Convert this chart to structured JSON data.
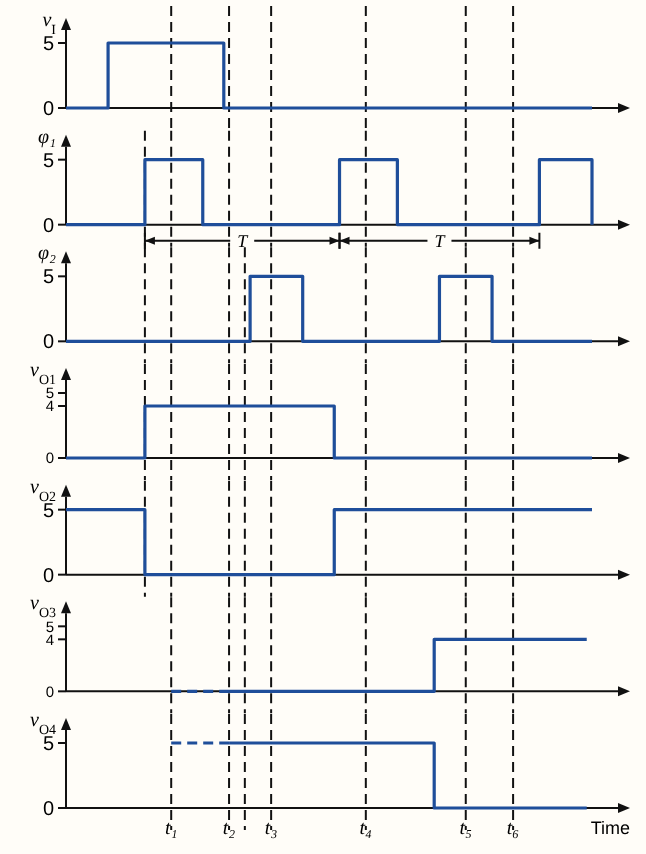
{
  "chart_data": [
    {
      "type": "step",
      "ylabel": "v$_{I}$",
      "ylim": [
        0,
        6
      ],
      "yticks": [
        0,
        5
      ],
      "tick_labels": "y",
      "grid": "x",
      "categories": [
        null,
        null,
        null,
        null,
        null,
        null,
        null,
        null,
        null,
        null,
        null,
        null,
        null,
        null,
        null,
        null,
        null,
        null,
        null,
        null,
        null,
        null,
        null,
        null,
        null,
        null,
        null,
        null,
        null,
        null,
        null,
        null,
        null,
        null,
        null,
        null,
        null,
        null,
        null,
        null,
        null,
        null,
        null,
        null,
        null,
        null,
        null,
        null,
        null,
        null,
        null,
        null,
        null,
        null,
        null,
        null,
        null,
        null,
        null,
        null,
        null,
        null,
        null,
        null,
        null,
        null,
        null,
        null,
        null,
        null,
        null,
        null,
        null,
        null,
        null,
        null,
        null,
        null,
        null,
        null,
        null,
        null,
        null,
        null,
        null,
        null,
        null,
        null,
        null,
        null,
        null,
        null,
        null,
        null,
        null,
        null,
        null,
        null,
        null,
        null,
        null
      ],
      "series": [
        {
          "color": "#1f4e9a",
          "values": [
            0,
            0,
            0,
            0,
            0,
            0,
            0,
            0,
            5,
            5,
            5,
            5,
            5,
            5,
            5,
            5,
            5,
            5,
            5,
            5,
            5,
            5,
            5,
            5,
            5,
            5,
            5,
            5,
            5,
            5,
            0,
            0,
            0,
            0,
            0,
            0,
            0,
            0,
            0,
            0,
            0,
            0,
            0,
            0,
            0,
            0,
            0,
            0,
            0,
            0,
            0,
            0,
            0,
            0,
            0,
            0,
            0,
            0,
            0,
            0,
            0,
            0,
            0,
            0,
            0,
            0,
            0,
            0,
            0,
            0,
            0,
            0,
            0,
            0,
            0,
            0,
            0,
            0,
            0,
            0,
            0,
            0,
            0,
            0,
            0,
            0,
            0,
            0,
            0,
            0,
            0,
            0,
            0,
            0,
            0,
            0,
            0,
            0,
            0,
            0,
            0
          ]
        }
      ]
    },
    {
      "type": "step",
      "ylabel": "φ₁",
      "ylim": [
        0,
        6
      ],
      "yticks": [
        0,
        5
      ],
      "tick_labels": "y",
      "grid": "x",
      "annotations": [
        "T",
        "T"
      ],
      "categories": [
        null,
        null,
        null,
        null,
        null,
        null,
        null,
        null,
        null,
        null,
        null,
        null,
        null,
        null,
        null,
        null,
        null,
        null,
        null,
        null,
        null,
        null,
        null,
        null,
        null,
        null,
        null,
        null,
        null,
        null,
        null,
        null,
        null,
        null,
        null,
        null,
        null,
        null,
        null,
        null,
        null,
        null,
        null,
        null,
        null,
        null,
        null,
        null,
        null,
        null,
        null,
        null,
        null,
        null,
        null,
        null,
        null,
        null,
        null,
        null,
        null,
        null,
        null,
        null,
        null,
        null,
        null,
        null,
        null,
        null,
        null,
        null,
        null,
        null,
        null,
        null,
        null,
        null,
        null,
        null,
        null,
        null,
        null,
        null,
        null,
        null,
        null,
        null,
        null,
        null,
        null,
        null,
        null,
        null,
        null,
        null,
        null,
        null,
        null,
        null,
        null
      ],
      "series": [
        {
          "color": "#1f4e9a",
          "values": [
            0,
            0,
            0,
            0,
            0,
            0,
            0,
            0,
            0,
            0,
            0,
            0,
            0,
            0,
            0,
            5,
            5,
            5,
            5,
            5,
            5,
            5,
            5,
            5,
            5,
            5,
            0,
            0,
            0,
            0,
            0,
            0,
            0,
            0,
            0,
            0,
            0,
            0,
            0,
            0,
            0,
            0,
            0,
            0,
            0,
            0,
            0,
            0,
            0,
            0,
            0,
            0,
            5,
            5,
            5,
            5,
            5,
            5,
            5,
            5,
            5,
            5,
            5,
            0,
            0,
            0,
            0,
            0,
            0,
            0,
            0,
            0,
            0,
            0,
            0,
            0,
            0,
            0,
            0,
            0,
            0,
            0,
            0,
            0,
            0,
            0,
            0,
            0,
            0,
            0,
            5,
            5,
            5,
            5,
            5,
            5,
            5,
            5,
            5,
            5,
            0
          ]
        }
      ]
    },
    {
      "type": "step",
      "ylabel": "φ₂",
      "ylim": [
        0,
        6
      ],
      "yticks": [
        0,
        5
      ],
      "tick_labels": "y",
      "grid": "x",
      "categories": [
        null,
        null,
        null,
        null,
        null,
        null,
        null,
        null,
        null,
        null,
        null,
        null,
        null,
        null,
        null,
        null,
        null,
        null,
        null,
        null,
        null,
        null,
        null,
        null,
        null,
        null,
        null,
        null,
        null,
        null,
        null,
        null,
        null,
        null,
        null,
        null,
        null,
        null,
        null,
        null,
        null,
        null,
        null,
        null,
        null,
        null,
        null,
        null,
        null,
        null,
        null,
        null,
        null,
        null,
        null,
        null,
        null,
        null,
        null,
        null,
        null,
        null,
        null,
        null,
        null,
        null,
        null,
        null,
        null,
        null,
        null,
        null,
        null,
        null,
        null,
        null,
        null,
        null,
        null,
        null,
        null,
        null,
        null,
        null,
        null,
        null,
        null,
        null,
        null,
        null,
        null,
        null,
        null,
        null,
        null,
        null,
        null,
        null,
        null,
        null,
        null
      ],
      "series": [
        {
          "color": "#1f4e9a",
          "values": [
            0,
            0,
            0,
            0,
            0,
            0,
            0,
            0,
            0,
            0,
            0,
            0,
            0,
            0,
            0,
            0,
            0,
            0,
            0,
            0,
            0,
            0,
            0,
            0,
            0,
            0,
            0,
            0,
            0,
            0,
            0,
            0,
            0,
            0,
            0,
            5,
            5,
            5,
            5,
            5,
            5,
            5,
            5,
            5,
            5,
            0,
            0,
            0,
            0,
            0,
            0,
            0,
            0,
            0,
            0,
            0,
            0,
            0,
            0,
            0,
            0,
            0,
            0,
            0,
            0,
            0,
            0,
            0,
            0,
            0,
            0,
            5,
            5,
            5,
            5,
            5,
            5,
            5,
            5,
            5,
            5,
            0,
            0,
            0,
            0,
            0,
            0,
            0,
            0,
            0,
            0,
            0,
            0,
            0,
            0,
            0,
            0,
            0,
            0,
            0,
            0
          ]
        }
      ]
    },
    {
      "type": "step",
      "ylabel": "v$_{O1}$",
      "ylim": [
        0,
        6
      ],
      "yticks": [
        0,
        4,
        5
      ],
      "tick_labels": "y",
      "grid": "x",
      "categories": [
        null,
        null,
        null,
        null,
        null,
        null,
        null,
        null,
        null,
        null,
        null,
        null,
        null,
        null,
        null,
        null,
        null,
        null,
        null,
        null,
        null,
        null,
        null,
        null,
        null,
        null,
        null,
        null,
        null,
        null,
        null,
        null,
        null,
        null,
        null,
        null,
        null,
        null,
        null,
        null,
        null,
        null,
        null,
        null,
        null,
        null,
        null,
        null,
        null,
        null,
        null,
        null,
        null,
        null,
        null,
        null,
        null,
        null,
        null,
        null,
        null,
        null,
        null,
        null,
        null,
        null,
        null,
        null,
        null,
        null,
        null,
        null,
        null,
        null,
        null,
        null,
        null,
        null,
        null,
        null,
        null,
        null,
        null,
        null,
        null,
        null,
        null,
        null,
        null,
        null,
        null,
        null,
        null,
        null,
        null,
        null,
        null,
        null,
        null,
        null,
        null
      ],
      "series": [
        {
          "color": "#1f4e9a",
          "values": [
            0,
            0,
            0,
            0,
            0,
            0,
            0,
            0,
            0,
            0,
            0,
            0,
            0,
            0,
            0,
            4,
            4,
            4,
            4,
            4,
            4,
            4,
            4,
            4,
            4,
            4,
            4,
            4,
            4,
            4,
            4,
            4,
            4,
            4,
            4,
            4,
            4,
            4,
            4,
            4,
            4,
            4,
            4,
            4,
            4,
            4,
            4,
            4,
            4,
            4,
            4,
            0,
            0,
            0,
            0,
            0,
            0,
            0,
            0,
            0,
            0,
            0,
            0,
            0,
            0,
            0,
            0,
            0,
            0,
            0,
            0,
            0,
            0,
            0,
            0,
            0,
            0,
            0,
            0,
            0,
            0,
            0,
            0,
            0,
            0,
            0,
            0,
            0,
            0,
            0,
            0,
            0,
            0,
            0,
            0,
            0,
            0,
            0,
            0,
            0,
            0
          ]
        }
      ]
    },
    {
      "type": "step",
      "ylabel": "v$_{O2}$",
      "ylim": [
        0,
        6
      ],
      "yticks": [
        0,
        5
      ],
      "tick_labels": "y",
      "grid": "x",
      "categories": [
        null,
        null,
        null,
        null,
        null,
        null,
        null,
        null,
        null,
        null,
        null,
        null,
        null,
        null,
        null,
        null,
        null,
        null,
        null,
        null,
        null,
        null,
        null,
        null,
        null,
        null,
        null,
        null,
        null,
        null,
        null,
        null,
        null,
        null,
        null,
        null,
        null,
        null,
        null,
        null,
        null,
        null,
        null,
        null,
        null,
        null,
        null,
        null,
        null,
        null,
        null,
        null,
        null,
        null,
        null,
        null,
        null,
        null,
        null,
        null,
        null,
        null,
        null,
        null,
        null,
        null,
        null,
        null,
        null,
        null,
        null,
        null,
        null,
        null,
        null,
        null,
        null,
        null,
        null,
        null,
        null,
        null,
        null,
        null,
        null,
        null,
        null,
        null,
        null,
        null,
        null,
        null,
        null,
        null,
        null,
        null,
        null,
        null,
        null,
        null,
        null
      ],
      "series": [
        {
          "color": "#1f4e9a",
          "values": [
            5,
            5,
            5,
            5,
            5,
            5,
            5,
            5,
            5,
            5,
            5,
            5,
            5,
            5,
            5,
            0,
            0,
            0,
            0,
            0,
            0,
            0,
            0,
            0,
            0,
            0,
            0,
            0,
            0,
            0,
            0,
            0,
            0,
            0,
            0,
            0,
            0,
            0,
            0,
            0,
            0,
            0,
            0,
            0,
            0,
            0,
            0,
            0,
            0,
            0,
            0,
            5,
            5,
            5,
            5,
            5,
            5,
            5,
            5,
            5,
            5,
            5,
            5,
            5,
            5,
            5,
            5,
            5,
            5,
            5,
            5,
            5,
            5,
            5,
            5,
            5,
            5,
            5,
            5,
            5,
            5,
            5,
            5,
            5,
            5,
            5,
            5,
            5,
            5,
            5,
            5,
            5,
            5,
            5,
            5,
            5,
            5,
            5,
            5,
            5,
            5
          ]
        }
      ]
    },
    {
      "type": "step",
      "ylabel": "v$_{O3}$",
      "ylim": [
        0,
        6
      ],
      "yticks": [
        0,
        4,
        5
      ],
      "tick_labels": "y",
      "grid": "x",
      "categories": [
        null,
        null,
        null,
        null,
        null,
        null,
        null,
        null,
        null,
        null,
        null,
        null,
        null,
        null,
        null,
        null,
        null,
        null,
        null,
        null,
        null,
        null,
        null,
        null,
        null,
        null,
        null,
        null,
        null,
        null,
        null,
        null,
        null,
        null,
        null,
        null,
        null,
        null,
        null,
        null,
        null,
        null,
        null,
        null,
        null,
        null,
        null,
        null,
        null,
        null,
        null,
        null,
        null,
        null,
        null,
        null,
        null,
        null,
        null,
        null,
        null,
        null,
        null,
        null,
        null,
        null,
        null,
        null,
        null,
        null,
        null,
        null,
        null,
        null,
        null,
        null,
        null,
        null,
        null,
        null,
        null,
        null,
        null,
        null,
        null,
        null,
        null,
        null,
        null,
        null,
        null,
        null,
        null,
        null,
        null,
        null,
        null,
        null,
        null,
        null,
        null
      ],
      "series": [
        {
          "color": "#1f4e9a",
          "line_style": "dashed",
          "values": [
            null,
            null,
            null,
            null,
            null,
            null,
            null,
            null,
            null,
            null,
            null,
            null,
            null,
            null,
            null,
            null,
            null,
            null,
            null,
            null,
            0,
            0,
            0,
            0,
            0,
            0,
            0,
            0,
            0,
            0,
            0,
            0,
            null,
            null,
            null,
            null,
            null,
            null,
            null,
            null,
            null,
            null,
            null,
            null,
            null,
            null,
            null,
            null,
            null,
            null,
            null,
            null,
            null,
            null,
            null,
            null,
            null,
            null,
            null,
            null,
            null,
            null,
            null,
            null,
            null,
            null,
            null,
            null,
            null,
            null,
            null,
            null,
            null,
            null,
            null,
            null,
            null,
            null,
            null,
            null,
            null,
            null,
            null,
            null,
            null,
            null,
            null,
            null,
            null,
            null,
            null,
            null,
            null,
            null,
            null,
            null,
            null,
            null,
            null,
            null,
            null
          ]
        },
        {
          "color": "#1f4e9a",
          "line_style": "solid",
          "values": [
            null,
            null,
            null,
            null,
            null,
            null,
            null,
            null,
            null,
            null,
            null,
            null,
            null,
            null,
            null,
            null,
            null,
            null,
            null,
            null,
            null,
            null,
            null,
            null,
            null,
            null,
            null,
            null,
            null,
            null,
            null,
            0,
            0,
            0,
            0,
            0,
            0,
            0,
            0,
            0,
            0,
            0,
            0,
            0,
            0,
            0,
            0,
            0,
            0,
            0,
            0,
            0,
            0,
            0,
            0,
            0,
            0,
            0,
            0,
            0,
            0,
            0,
            0,
            0,
            0,
            0,
            0,
            0,
            0,
            0,
            4,
            4,
            4,
            4,
            4,
            4,
            4,
            4,
            4,
            4,
            4,
            4,
            4,
            4,
            4,
            4,
            4,
            4,
            4,
            4,
            4,
            4,
            4,
            4,
            4,
            4,
            4,
            4,
            4,
            4,
            null
          ]
        }
      ]
    },
    {
      "type": "step",
      "ylabel": "v$_{O4}$",
      "xlabel": "Time",
      "ylim": [
        0,
        6
      ],
      "yticks": [
        0,
        5
      ],
      "grid": "x",
      "categories": [
        null,
        null,
        null,
        null,
        null,
        null,
        null,
        null,
        null,
        null,
        null,
        null,
        null,
        null,
        null,
        null,
        null,
        null,
        null,
        null,
        "t₁",
        null,
        null,
        null,
        null,
        null,
        null,
        null,
        null,
        null,
        null,
        "t₂",
        null,
        null,
        null,
        null,
        null,
        null,
        null,
        "t₃",
        null,
        null,
        null,
        null,
        null,
        null,
        null,
        null,
        null,
        null,
        null,
        null,
        null,
        null,
        null,
        null,
        null,
        "t₄",
        null,
        null,
        null,
        null,
        null,
        null,
        null,
        null,
        null,
        null,
        null,
        null,
        null,
        null,
        null,
        null,
        null,
        null,
        "t₅",
        null,
        null,
        null,
        null,
        null,
        null,
        null,
        null,
        "t₆",
        null,
        null,
        null,
        null,
        null,
        null,
        null,
        null,
        null,
        null,
        null,
        null,
        null,
        null,
        null
      ],
      "series": [
        {
          "color": "#1f4e9a",
          "line_style": "dashed",
          "values": [
            null,
            null,
            null,
            null,
            null,
            null,
            null,
            null,
            null,
            null,
            null,
            null,
            null,
            null,
            null,
            null,
            null,
            null,
            null,
            null,
            5,
            5,
            5,
            5,
            5,
            5,
            5,
            5,
            5,
            5,
            5,
            5,
            null,
            null,
            null,
            null,
            null,
            null,
            null,
            null,
            null,
            null,
            null,
            null,
            null,
            null,
            null,
            null,
            null,
            null,
            null,
            null,
            null,
            null,
            null,
            null,
            null,
            null,
            null,
            null,
            null,
            null,
            null,
            null,
            null,
            null,
            null,
            null,
            null,
            null,
            null,
            null,
            null,
            null,
            null,
            null,
            null,
            null,
            null,
            null,
            null,
            null,
            null,
            null,
            null,
            null,
            null,
            null,
            null,
            null,
            null,
            null,
            null,
            null,
            null,
            null,
            null,
            null,
            null,
            null,
            null
          ]
        },
        {
          "color": "#1f4e9a",
          "line_style": "solid",
          "values": [
            null,
            null,
            null,
            null,
            null,
            null,
            null,
            null,
            null,
            null,
            null,
            null,
            null,
            null,
            null,
            null,
            null,
            null,
            null,
            null,
            null,
            null,
            null,
            null,
            null,
            null,
            null,
            null,
            null,
            null,
            null,
            5,
            5,
            5,
            5,
            5,
            5,
            5,
            5,
            5,
            5,
            5,
            5,
            5,
            5,
            5,
            5,
            5,
            5,
            5,
            5,
            5,
            5,
            5,
            5,
            5,
            5,
            5,
            5,
            5,
            5,
            5,
            5,
            5,
            5,
            5,
            5,
            5,
            5,
            5,
            0,
            0,
            0,
            0,
            0,
            0,
            0,
            0,
            0,
            0,
            0,
            0,
            0,
            0,
            0,
            0,
            0,
            0,
            0,
            0,
            0,
            0,
            0,
            0,
            0,
            0,
            0,
            0,
            0,
            0,
            null
          ]
        }
      ]
    }
  ]
}
